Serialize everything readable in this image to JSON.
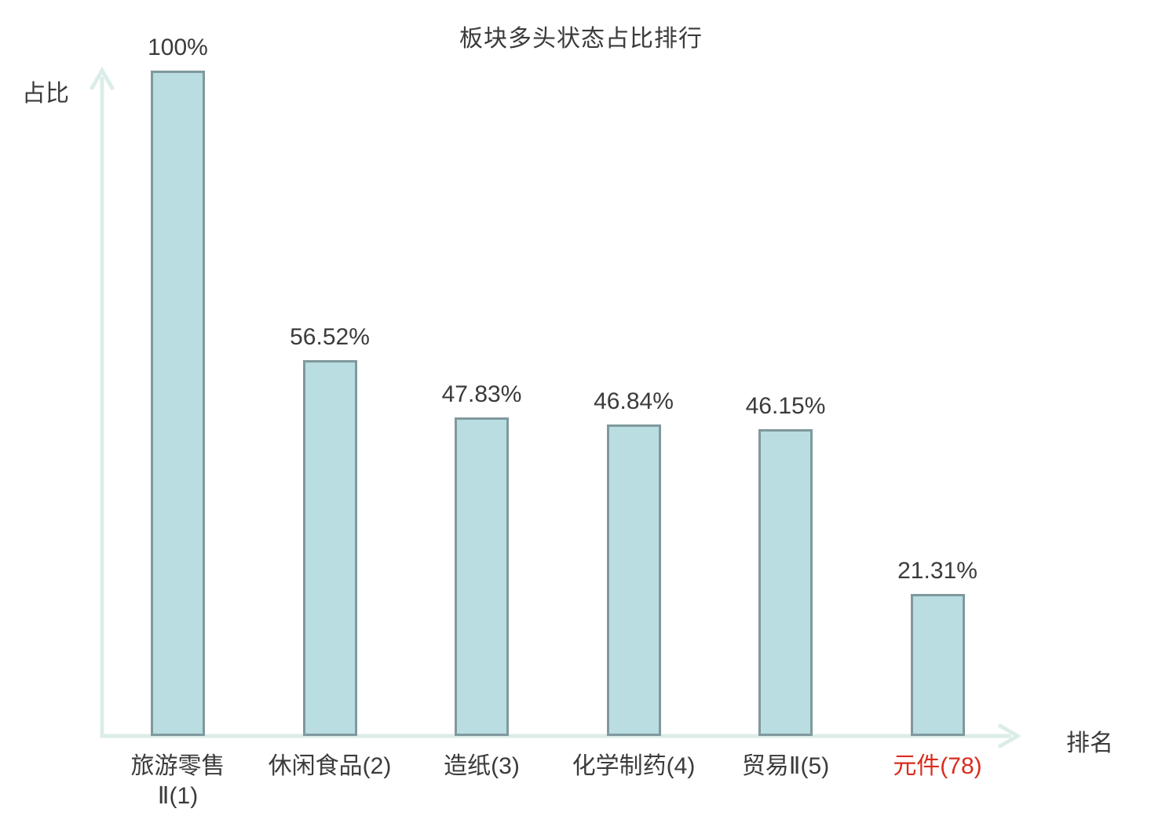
{
  "chart_data": {
    "type": "bar",
    "title": "板块多头状态占比排行",
    "xlabel": "排名",
    "ylabel": "占比",
    "categories": [
      "旅游零售\nⅡ(1)",
      "休闲食品(2)",
      "造纸(3)",
      "化学制药(4)",
      "贸易Ⅱ(5)",
      "元件(78)"
    ],
    "values": [
      100,
      56.52,
      47.83,
      46.84,
      46.15,
      21.31
    ],
    "value_labels": [
      "100%",
      "56.52%",
      "47.83%",
      "46.84%",
      "46.15%",
      "21.31%"
    ],
    "ranks": [
      1,
      2,
      3,
      4,
      5,
      78
    ],
    "highlight_index": 5,
    "ylim": [
      0,
      100
    ],
    "grid": false,
    "legend": null,
    "axes_style": "arrow"
  },
  "colors": {
    "background": "#ffffff",
    "bar_fill": "#b9dde1",
    "bar_border": "#7f999d",
    "axis": "#dcede9",
    "text": "#3b3b3b",
    "highlight": "#d92c1e"
  }
}
